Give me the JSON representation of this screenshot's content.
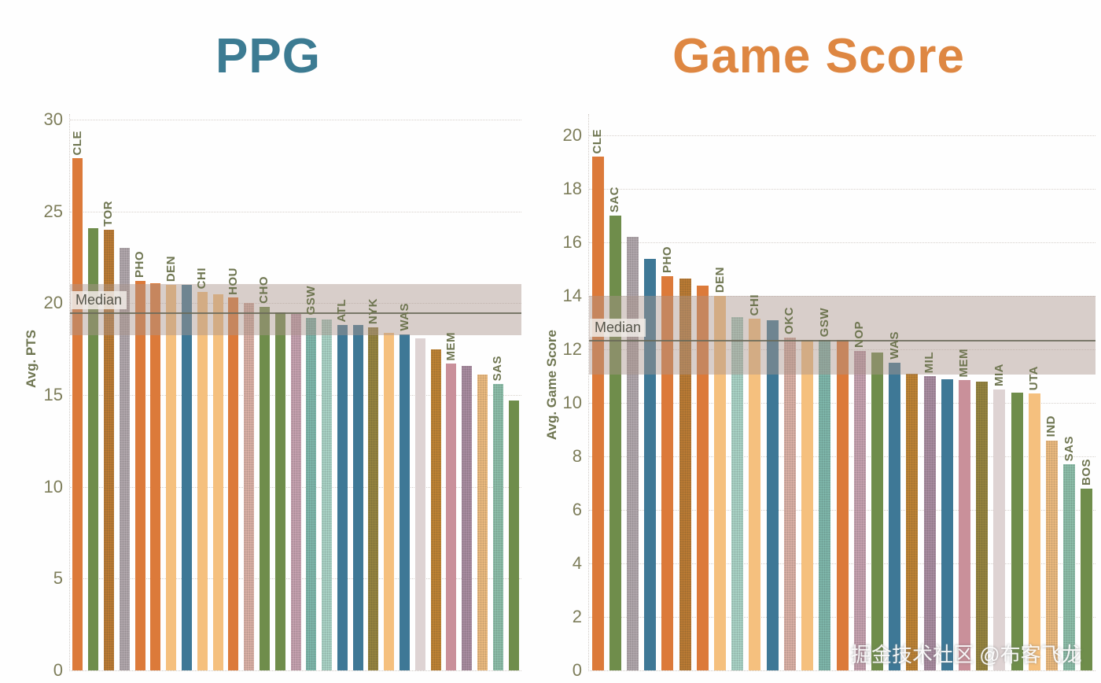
{
  "watermark": {
    "text": "掘金技术社区 @布客飞龙"
  },
  "palette": {
    "orange": "#dc7a3a",
    "green": "#6f8d4b",
    "lightOrange": "#f5c07e",
    "blue": "#3e7896",
    "brown": "#bd7c33",
    "gray": "#b3a9ae",
    "salmon": "#ddb2a7",
    "rose": "#c8a3b1",
    "teal": "#7fb9ad",
    "lightTeal": "#abd5c8",
    "olive": "#97853e",
    "lightGray": "#ded3d3",
    "brown2": "#c08433",
    "mauve": "#c9909a",
    "purple": "#aa8da2",
    "lightOrangeDot": "#eebc80",
    "seafoam": "#8dc0ab"
  },
  "chart_data": [
    {
      "type": "bar",
      "title": "PPG",
      "title_color": "#3c7b92",
      "ylabel": "Avg. PTS",
      "ylim": [
        0,
        30.3
      ],
      "yticks": [
        0,
        5,
        10,
        15,
        20,
        25,
        30
      ],
      "grid": "dotted",
      "legend": "none",
      "median_ref": {
        "label": "Median",
        "median": 19.5,
        "band": [
          18.25,
          21.05
        ]
      },
      "bars": [
        {
          "label": "CLE",
          "value": 27.9,
          "color": "orange",
          "dotted": false
        },
        {
          "label": "",
          "value": 24.1,
          "color": "green",
          "dotted": false
        },
        {
          "label": "TOR",
          "value": 24.0,
          "color": "brown",
          "dotted": true
        },
        {
          "label": "",
          "value": 23.0,
          "color": "gray",
          "dotted": true
        },
        {
          "label": "PHO",
          "value": 21.2,
          "color": "orange",
          "dotted": false
        },
        {
          "label": "",
          "value": 21.1,
          "color": "orange",
          "dotted": false
        },
        {
          "label": "DEN",
          "value": 21.0,
          "color": "lightOrange",
          "dotted": false
        },
        {
          "label": "",
          "value": 21.0,
          "color": "blue",
          "dotted": false
        },
        {
          "label": "CHI",
          "value": 20.6,
          "color": "lightOrange",
          "dotted": false
        },
        {
          "label": "",
          "value": 20.5,
          "color": "lightOrange",
          "dotted": false
        },
        {
          "label": "HOU",
          "value": 20.3,
          "color": "orange",
          "dotted": false
        },
        {
          "label": "",
          "value": 20.0,
          "color": "salmon",
          "dotted": true
        },
        {
          "label": "CHO",
          "value": 19.8,
          "color": "green",
          "dotted": false
        },
        {
          "label": "",
          "value": 19.5,
          "color": "green",
          "dotted": false
        },
        {
          "label": "",
          "value": 19.4,
          "color": "rose",
          "dotted": true
        },
        {
          "label": "GSW",
          "value": 19.2,
          "color": "teal",
          "dotted": true
        },
        {
          "label": "",
          "value": 19.1,
          "color": "lightTeal",
          "dotted": true
        },
        {
          "label": "ATL",
          "value": 18.8,
          "color": "blue",
          "dotted": false
        },
        {
          "label": "",
          "value": 18.8,
          "color": "blue",
          "dotted": false
        },
        {
          "label": "NYK",
          "value": 18.7,
          "color": "olive",
          "dotted": true
        },
        {
          "label": "",
          "value": 18.4,
          "color": "lightOrange",
          "dotted": false
        },
        {
          "label": "WAS",
          "value": 18.3,
          "color": "blue",
          "dotted": false
        },
        {
          "label": "",
          "value": 18.1,
          "color": "lightGray",
          "dotted": false
        },
        {
          "label": "",
          "value": 17.5,
          "color": "brown2",
          "dotted": true
        },
        {
          "label": "MEM",
          "value": 16.7,
          "color": "mauve",
          "dotted": false
        },
        {
          "label": "",
          "value": 16.6,
          "color": "purple",
          "dotted": true
        },
        {
          "label": "",
          "value": 16.1,
          "color": "lightOrangeDot",
          "dotted": true
        },
        {
          "label": "SAS",
          "value": 15.6,
          "color": "seafoam",
          "dotted": true
        },
        {
          "label": "",
          "value": 14.7,
          "color": "green",
          "dotted": false
        }
      ]
    },
    {
      "type": "bar",
      "title": "Game Score",
      "title_color": "#de8742",
      "ylabel": "Avg. Game Score",
      "ylim": [
        0,
        20.8
      ],
      "yticks": [
        0,
        2,
        4,
        6,
        8,
        10,
        12,
        14,
        16,
        18,
        20
      ],
      "grid": "dotted",
      "legend": "none",
      "median_ref": {
        "label": "Median",
        "median": 12.35,
        "band": [
          11.05,
          14.0
        ]
      },
      "bars": [
        {
          "label": "CLE",
          "value": 19.2,
          "color": "orange",
          "dotted": false
        },
        {
          "label": "SAC",
          "value": 17.0,
          "color": "green",
          "dotted": false
        },
        {
          "label": "",
          "value": 16.2,
          "color": "gray",
          "dotted": true
        },
        {
          "label": "",
          "value": 15.4,
          "color": "blue",
          "dotted": false
        },
        {
          "label": "PHO",
          "value": 14.75,
          "color": "orange",
          "dotted": false
        },
        {
          "label": "",
          "value": 14.65,
          "color": "brown",
          "dotted": true
        },
        {
          "label": "",
          "value": 14.4,
          "color": "orange",
          "dotted": false
        },
        {
          "label": "DEN",
          "value": 14.0,
          "color": "lightOrange",
          "dotted": false
        },
        {
          "label": "",
          "value": 13.2,
          "color": "lightTeal",
          "dotted": true
        },
        {
          "label": "CHI",
          "value": 13.15,
          "color": "lightOrange",
          "dotted": false
        },
        {
          "label": "",
          "value": 13.1,
          "color": "blue",
          "dotted": false
        },
        {
          "label": "OKC",
          "value": 12.45,
          "color": "salmon",
          "dotted": true
        },
        {
          "label": "",
          "value": 12.35,
          "color": "lightOrange",
          "dotted": false
        },
        {
          "label": "GSW",
          "value": 12.35,
          "color": "teal",
          "dotted": true
        },
        {
          "label": "",
          "value": 12.35,
          "color": "orange",
          "dotted": false
        },
        {
          "label": "NOP",
          "value": 11.95,
          "color": "rose",
          "dotted": true
        },
        {
          "label": "",
          "value": 11.9,
          "color": "green",
          "dotted": false
        },
        {
          "label": "WAS",
          "value": 11.5,
          "color": "blue",
          "dotted": false
        },
        {
          "label": "",
          "value": 11.1,
          "color": "brown2",
          "dotted": true
        },
        {
          "label": "MIL",
          "value": 11.0,
          "color": "purple",
          "dotted": true
        },
        {
          "label": "",
          "value": 10.9,
          "color": "blue",
          "dotted": false
        },
        {
          "label": "MEM",
          "value": 10.85,
          "color": "mauve",
          "dotted": false
        },
        {
          "label": "",
          "value": 10.8,
          "color": "olive",
          "dotted": true
        },
        {
          "label": "MIA",
          "value": 10.5,
          "color": "lightGray",
          "dotted": false
        },
        {
          "label": "",
          "value": 10.4,
          "color": "green",
          "dotted": false
        },
        {
          "label": "UTA",
          "value": 10.35,
          "color": "lightOrange",
          "dotted": false
        },
        {
          "label": "IND",
          "value": 8.6,
          "color": "lightOrangeDot",
          "dotted": true
        },
        {
          "label": "SAS",
          "value": 7.7,
          "color": "seafoam",
          "dotted": true
        },
        {
          "label": "BOS",
          "value": 6.8,
          "color": "green",
          "dotted": false
        }
      ]
    }
  ]
}
